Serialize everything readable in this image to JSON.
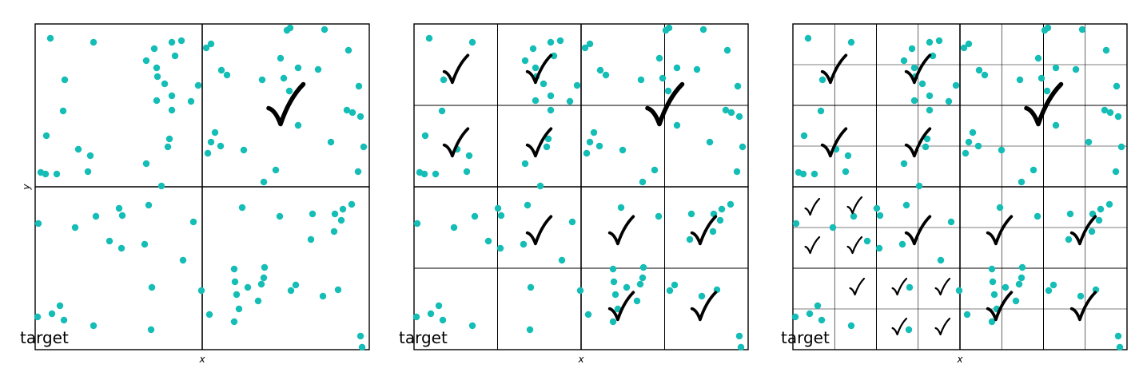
{
  "panels": [
    {
      "label": "target",
      "x_label": "x",
      "y_label": "y"
    },
    {
      "label": "target",
      "x_label": "x"
    },
    {
      "label": "target",
      "x_label": "x"
    }
  ]
}
